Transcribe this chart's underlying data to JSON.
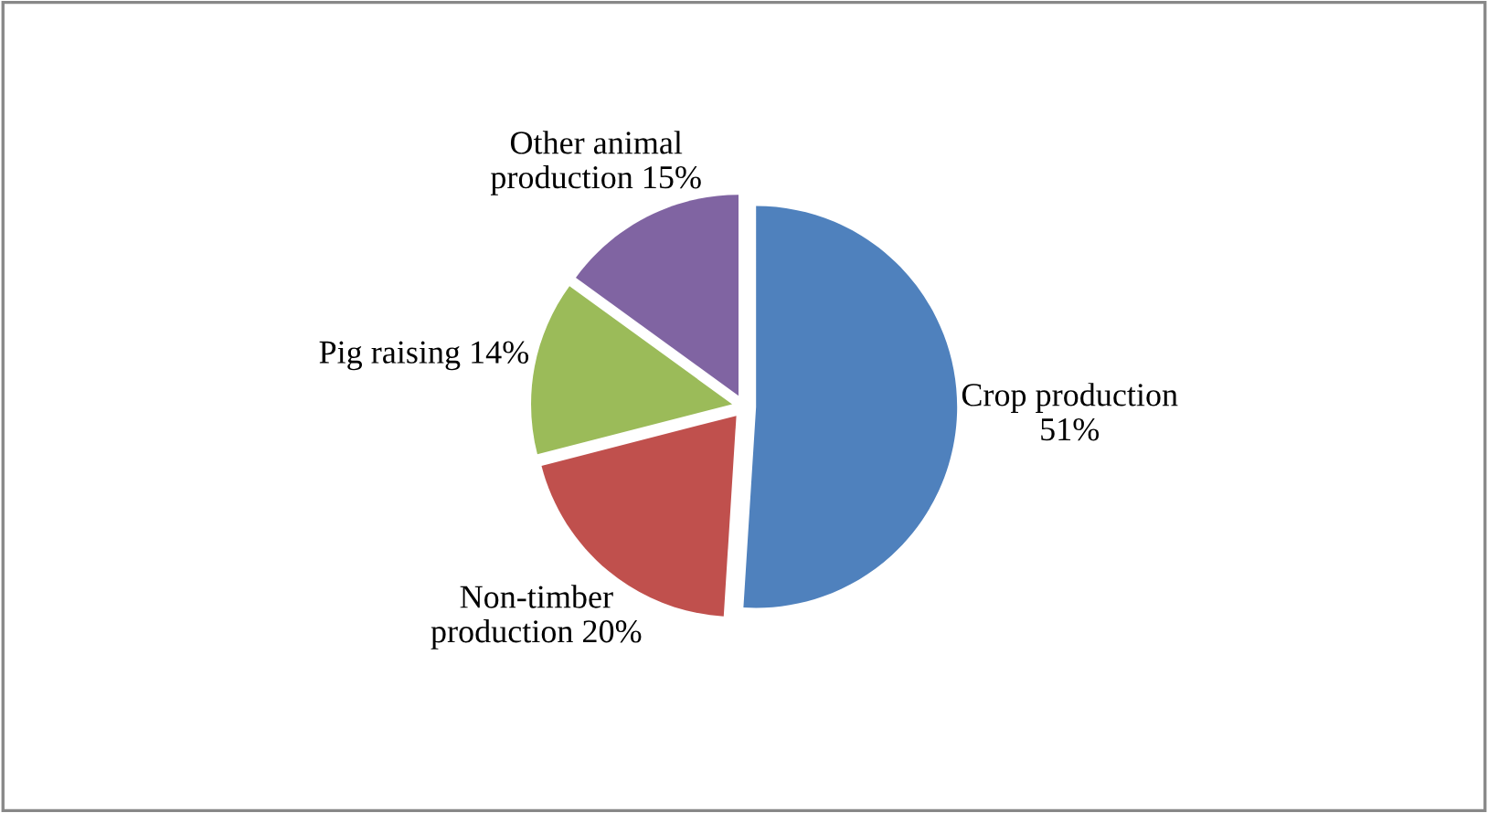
{
  "chart_data": {
    "type": "pie",
    "categories": [
      "Crop production",
      "Non-timber production",
      "Pig raising",
      "Other animal production"
    ],
    "values": [
      51,
      20,
      14,
      15
    ],
    "value_labels": [
      "51%",
      "20%",
      "14%",
      "15%"
    ],
    "colors": [
      "#4f81bd",
      "#c0504d",
      "#9bbb59",
      "#8064a2"
    ],
    "legend": false
  }
}
